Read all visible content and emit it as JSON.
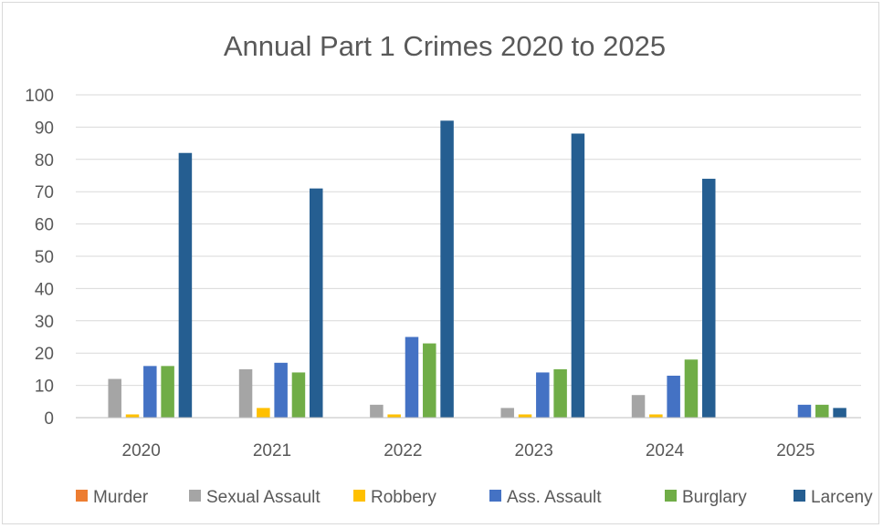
{
  "chart_data": {
    "type": "bar",
    "title": "Annual Part 1 Crimes 2020 to 2025",
    "categories": [
      "2020",
      "2021",
      "2022",
      "2023",
      "2024",
      "2025"
    ],
    "series": [
      {
        "name": "Murder",
        "color": "#ed7d31",
        "values": [
          0,
          0,
          0,
          0,
          0,
          0
        ]
      },
      {
        "name": "Sexual Assault",
        "color": "#a5a5a5",
        "values": [
          12,
          15,
          4,
          3,
          7,
          0
        ]
      },
      {
        "name": "Robbery",
        "color": "#ffc000",
        "values": [
          1,
          3,
          1,
          1,
          1,
          0
        ]
      },
      {
        "name": "Ass. Assault",
        "color": "#4472c4",
        "values": [
          16,
          17,
          25,
          14,
          13,
          4
        ]
      },
      {
        "name": "Burglary",
        "color": "#70ad47",
        "values": [
          16,
          14,
          23,
          15,
          18,
          4
        ]
      },
      {
        "name": "Larceny",
        "color": "#255e91",
        "values": [
          82,
          71,
          92,
          88,
          74,
          3
        ]
      }
    ],
    "ylim": [
      0,
      100
    ],
    "yticks": [
      "0",
      "10",
      "20",
      "30",
      "40",
      "50",
      "60",
      "70",
      "80",
      "90",
      "100"
    ],
    "grid": true,
    "legend": "bottom"
  }
}
